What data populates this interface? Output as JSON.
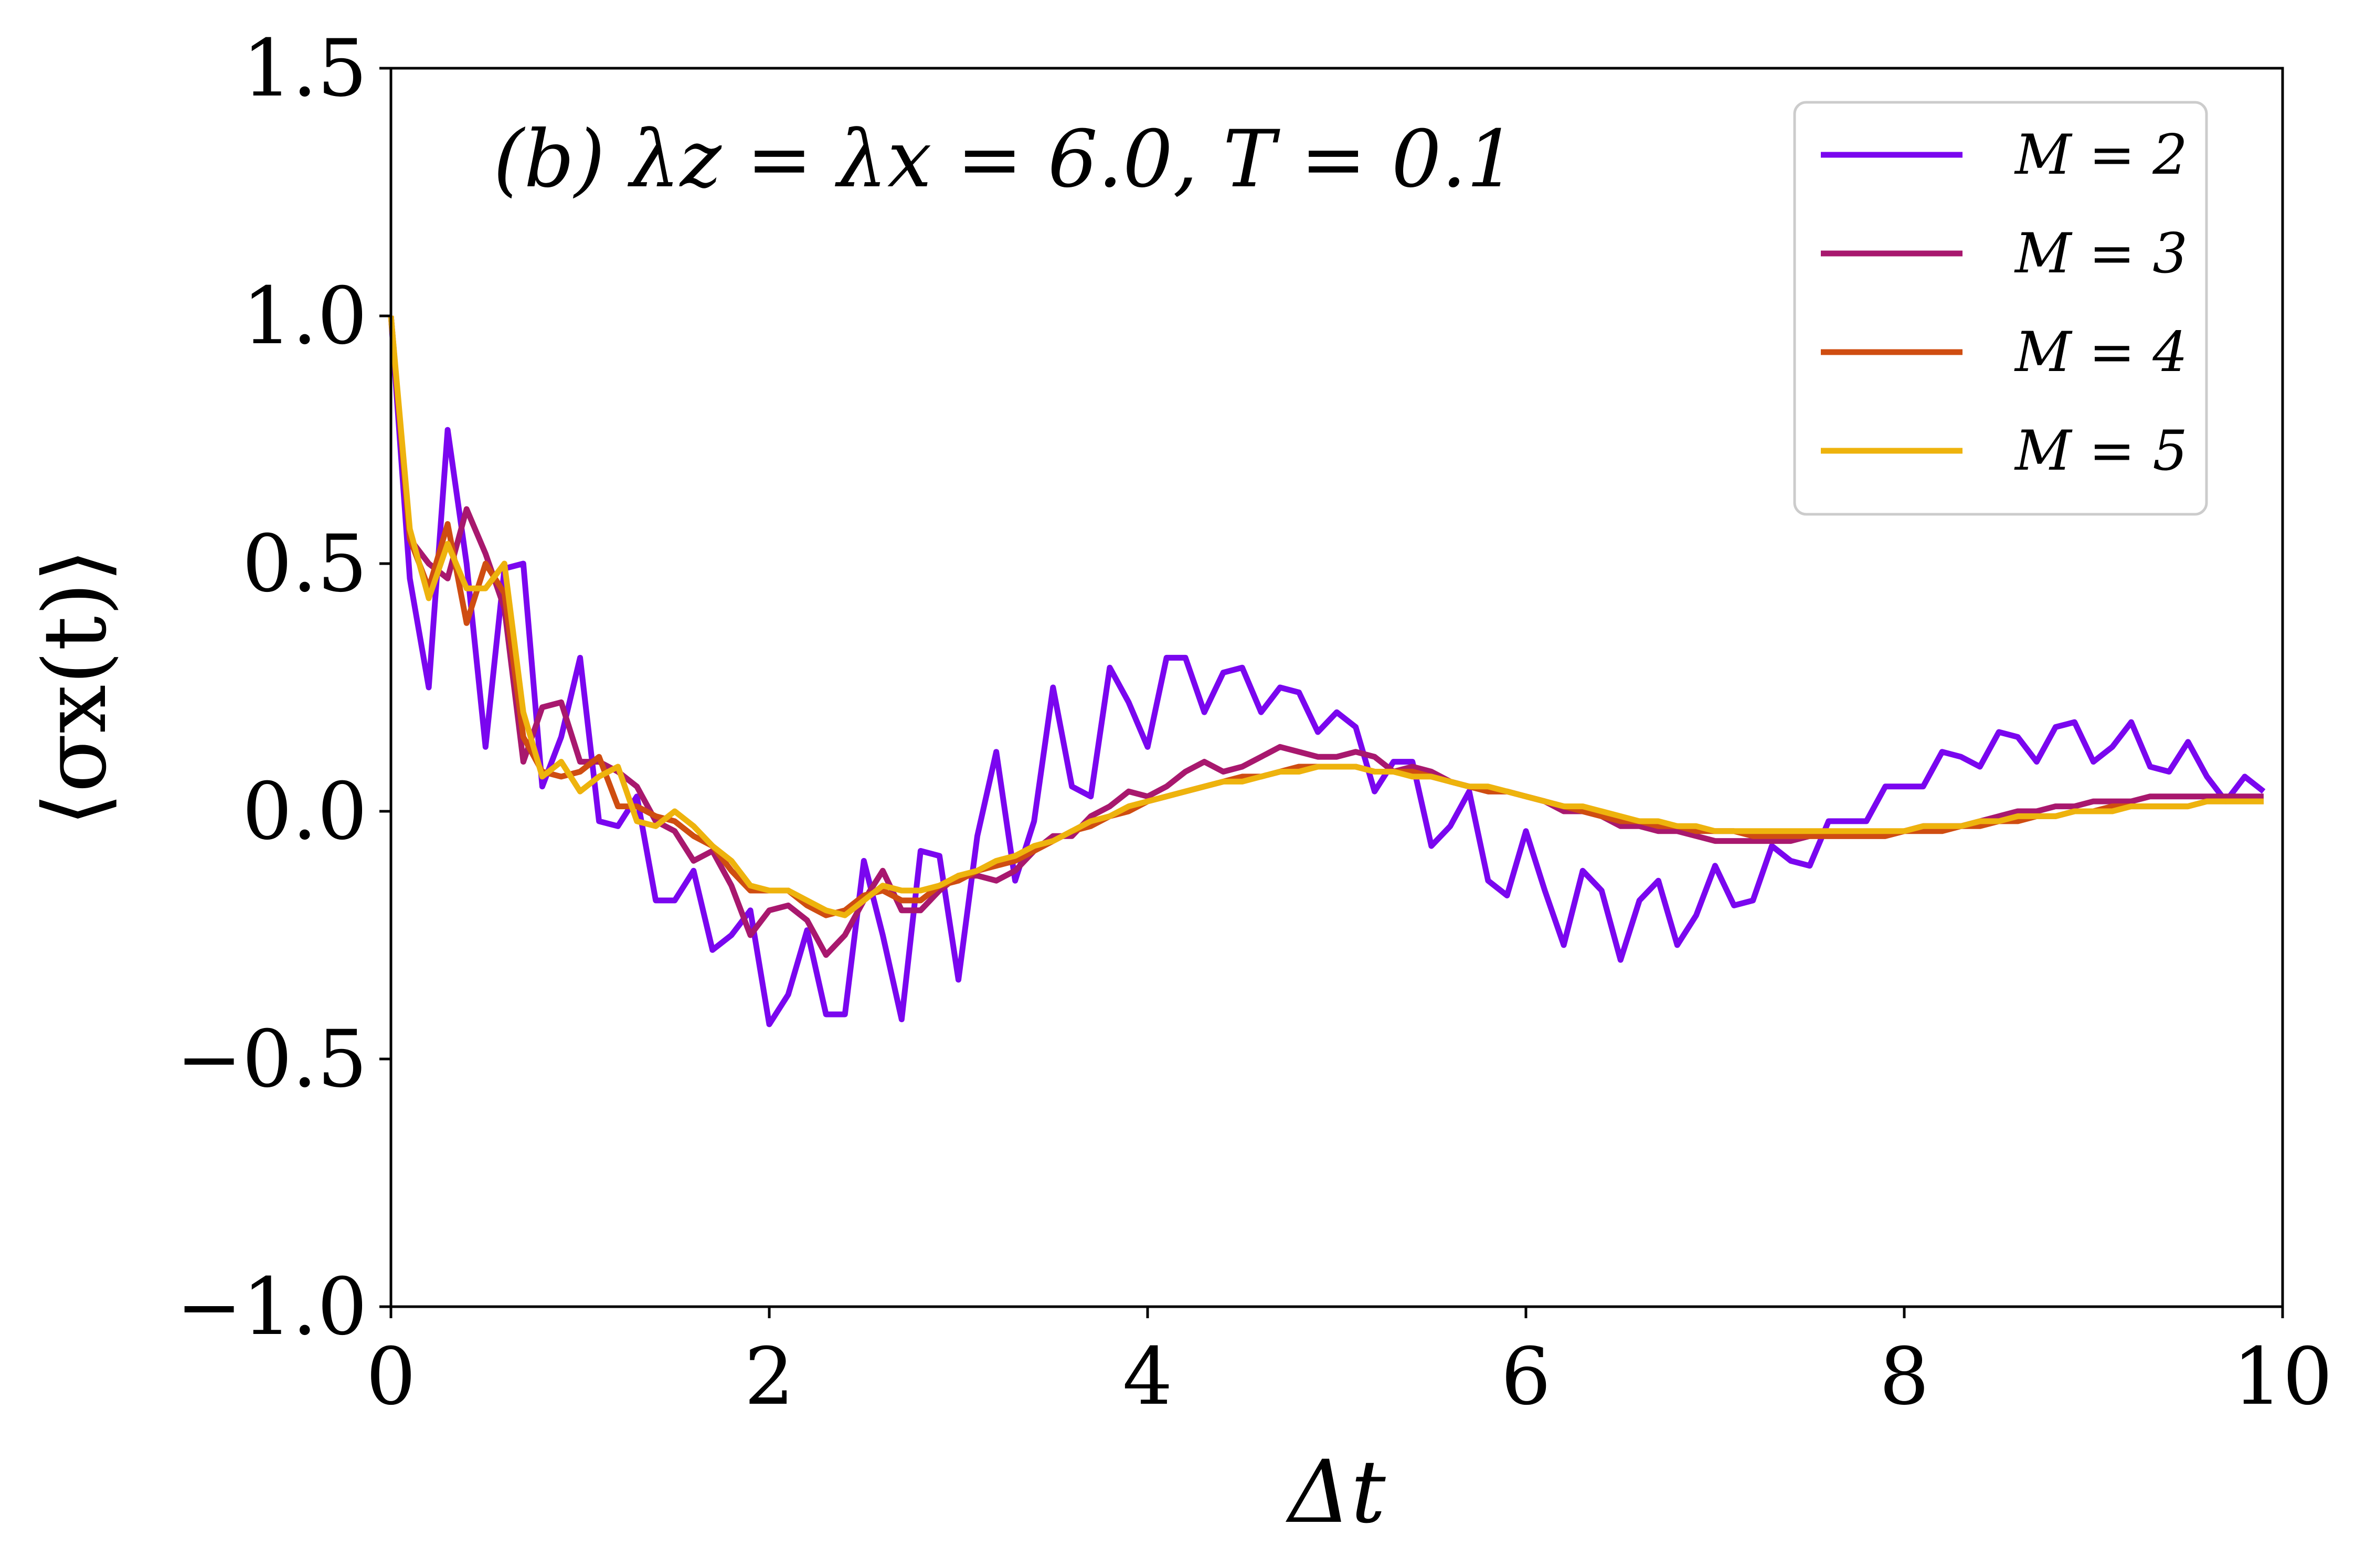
{
  "chart_data": {
    "type": "line",
    "annotation": "(b) λz = λx = 6.0, T = 0.1",
    "xlabel": "Δt",
    "ylabel": "⟨σx(t)⟩",
    "xlim": [
      0,
      10
    ],
    "ylim": [
      -1.0,
      1.5
    ],
    "xticks": [
      0,
      2,
      4,
      6,
      8,
      10
    ],
    "xtick_labels": [
      "0",
      "2",
      "4",
      "6",
      "8",
      "10"
    ],
    "yticks": [
      -1.0,
      -0.5,
      0.0,
      0.5,
      1.0,
      1.5
    ],
    "ytick_labels": [
      "−1.0",
      "−0.5",
      "0.0",
      "0.5",
      "1.0",
      "1.5"
    ],
    "grid": false,
    "legend_position": "top-right",
    "x": [
      0,
      0.1,
      0.2,
      0.3,
      0.4,
      0.5,
      0.6,
      0.7,
      0.8,
      0.9,
      1.0,
      1.1,
      1.2,
      1.3,
      1.4,
      1.5,
      1.6,
      1.7,
      1.8,
      1.9,
      2.0,
      2.1,
      2.2,
      2.3,
      2.4,
      2.5,
      2.6,
      2.7,
      2.8,
      2.9,
      3.0,
      3.1,
      3.2,
      3.3,
      3.4,
      3.5,
      3.6,
      3.7,
      3.8,
      3.9,
      4.0,
      4.1,
      4.2,
      4.3,
      4.4,
      4.5,
      4.6,
      4.7,
      4.8,
      4.9,
      5.0,
      5.1,
      5.2,
      5.3,
      5.4,
      5.5,
      5.6,
      5.7,
      5.8,
      5.9,
      6.0,
      6.1,
      6.2,
      6.3,
      6.4,
      6.5,
      6.6,
      6.7,
      6.8,
      6.9,
      7.0,
      7.1,
      7.2,
      7.3,
      7.4,
      7.5,
      7.6,
      7.7,
      7.8,
      7.9,
      8.0,
      8.1,
      8.2,
      8.3,
      8.4,
      8.5,
      8.6,
      8.7,
      8.8,
      8.9,
      9.0,
      9.1,
      9.2,
      9.3,
      9.4,
      9.5,
      9.6,
      9.7,
      9.8,
      9.9
    ],
    "series": [
      {
        "name": "M = 2",
        "color": "#7a06ef",
        "values": [
          1.0,
          0.47,
          0.25,
          0.77,
          0.5,
          0.13,
          0.49,
          0.5,
          0.05,
          0.15,
          0.31,
          -0.02,
          -0.03,
          0.03,
          -0.18,
          -0.18,
          -0.12,
          -0.28,
          -0.25,
          -0.2,
          -0.43,
          -0.37,
          -0.24,
          -0.41,
          -0.41,
          -0.1,
          -0.25,
          -0.42,
          -0.08,
          -0.09,
          -0.34,
          -0.05,
          0.12,
          -0.14,
          -0.02,
          0.25,
          0.05,
          0.03,
          0.29,
          0.22,
          0.13,
          0.31,
          0.31,
          0.2,
          0.28,
          0.29,
          0.2,
          0.25,
          0.24,
          0.16,
          0.2,
          0.17,
          0.04,
          0.1,
          0.1,
          -0.07,
          -0.03,
          0.04,
          -0.14,
          -0.17,
          -0.04,
          -0.16,
          -0.27,
          -0.12,
          -0.16,
          -0.3,
          -0.18,
          -0.14,
          -0.27,
          -0.21,
          -0.11,
          -0.19,
          -0.18,
          -0.07,
          -0.1,
          -0.11,
          -0.02,
          -0.02,
          -0.02,
          0.05,
          0.05,
          0.05,
          0.12,
          0.11,
          0.09,
          0.16,
          0.15,
          0.1,
          0.17,
          0.18,
          0.1,
          0.13,
          0.18,
          0.09,
          0.08,
          0.14,
          0.07,
          0.02,
          0.07,
          0.04
        ]
      },
      {
        "name": "M = 3",
        "color": "#a8186e",
        "values": [
          1.0,
          0.55,
          0.5,
          0.47,
          0.61,
          0.52,
          0.41,
          0.1,
          0.21,
          0.22,
          0.1,
          0.1,
          0.08,
          0.05,
          -0.02,
          -0.04,
          -0.1,
          -0.08,
          -0.15,
          -0.25,
          -0.2,
          -0.19,
          -0.22,
          -0.29,
          -0.25,
          -0.18,
          -0.12,
          -0.2,
          -0.2,
          -0.16,
          -0.13,
          -0.13,
          -0.14,
          -0.12,
          -0.08,
          -0.05,
          -0.05,
          -0.01,
          0.01,
          0.04,
          0.03,
          0.05,
          0.08,
          0.1,
          0.08,
          0.09,
          0.11,
          0.13,
          0.12,
          0.11,
          0.11,
          0.12,
          0.11,
          0.08,
          0.09,
          0.08,
          0.06,
          0.05,
          0.04,
          0.04,
          0.03,
          0.02,
          0.0,
          0.0,
          -0.01,
          -0.03,
          -0.03,
          -0.04,
          -0.04,
          -0.05,
          -0.06,
          -0.06,
          -0.06,
          -0.06,
          -0.06,
          -0.05,
          -0.05,
          -0.05,
          -0.05,
          -0.05,
          -0.04,
          -0.03,
          -0.03,
          -0.03,
          -0.02,
          -0.01,
          0.0,
          0.0,
          0.01,
          0.01,
          0.02,
          0.02,
          0.02,
          0.03,
          0.03,
          0.03,
          0.03,
          0.03,
          0.03,
          0.03
        ]
      },
      {
        "name": "M = 4",
        "color": "#cf4d11",
        "values": [
          1.0,
          0.55,
          0.45,
          0.58,
          0.38,
          0.5,
          0.44,
          0.15,
          0.08,
          0.07,
          0.08,
          0.11,
          0.01,
          0.01,
          -0.01,
          -0.02,
          -0.05,
          -0.07,
          -0.12,
          -0.16,
          -0.16,
          -0.16,
          -0.19,
          -0.21,
          -0.2,
          -0.17,
          -0.16,
          -0.18,
          -0.18,
          -0.15,
          -0.14,
          -0.12,
          -0.11,
          -0.1,
          -0.08,
          -0.06,
          -0.04,
          -0.03,
          -0.01,
          0.0,
          0.02,
          0.03,
          0.04,
          0.05,
          0.06,
          0.07,
          0.07,
          0.08,
          0.09,
          0.09,
          0.09,
          0.09,
          0.08,
          0.08,
          0.08,
          0.07,
          0.06,
          0.05,
          0.04,
          0.04,
          0.03,
          0.02,
          0.01,
          0.0,
          -0.01,
          -0.02,
          -0.02,
          -0.03,
          -0.03,
          -0.04,
          -0.04,
          -0.04,
          -0.05,
          -0.05,
          -0.05,
          -0.05,
          -0.05,
          -0.05,
          -0.05,
          -0.05,
          -0.04,
          -0.04,
          -0.04,
          -0.03,
          -0.03,
          -0.02,
          -0.02,
          -0.01,
          -0.01,
          0.0,
          0.0,
          0.01,
          0.01,
          0.01,
          0.01,
          0.01,
          0.02,
          0.02,
          0.02,
          0.02
        ]
      },
      {
        "name": "M = 5",
        "color": "#eeb30d",
        "values": [
          1.0,
          0.57,
          0.43,
          0.54,
          0.45,
          0.45,
          0.5,
          0.2,
          0.07,
          0.1,
          0.04,
          0.07,
          0.09,
          -0.02,
          -0.03,
          0.0,
          -0.03,
          -0.07,
          -0.1,
          -0.15,
          -0.16,
          -0.16,
          -0.18,
          -0.2,
          -0.21,
          -0.18,
          -0.15,
          -0.16,
          -0.16,
          -0.15,
          -0.13,
          -0.12,
          -0.1,
          -0.09,
          -0.07,
          -0.06,
          -0.04,
          -0.02,
          -0.01,
          0.01,
          0.02,
          0.03,
          0.04,
          0.05,
          0.06,
          0.06,
          0.07,
          0.08,
          0.08,
          0.09,
          0.09,
          0.09,
          0.08,
          0.08,
          0.07,
          0.07,
          0.06,
          0.05,
          0.05,
          0.04,
          0.03,
          0.02,
          0.01,
          0.01,
          0.0,
          -0.01,
          -0.02,
          -0.02,
          -0.03,
          -0.03,
          -0.04,
          -0.04,
          -0.04,
          -0.04,
          -0.04,
          -0.04,
          -0.04,
          -0.04,
          -0.04,
          -0.04,
          -0.04,
          -0.03,
          -0.03,
          -0.03,
          -0.02,
          -0.02,
          -0.01,
          -0.01,
          -0.01,
          0.0,
          0.0,
          0.0,
          0.01,
          0.01,
          0.01,
          0.01,
          0.02,
          0.02,
          0.02,
          0.02
        ]
      }
    ]
  }
}
